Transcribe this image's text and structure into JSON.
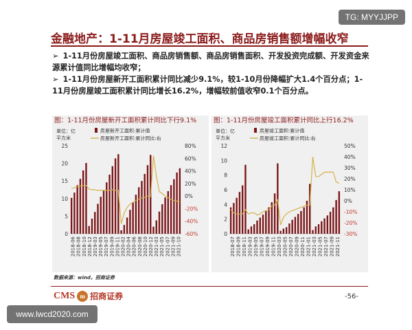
{
  "watermark_top": "TG: MYYJJPP",
  "watermark_bottom": "www.lwcd2020.com",
  "slide": {
    "title": "金融地产：1-11月房屋竣工面积、商品房销售额增幅收窄",
    "bullet_marker": "➢",
    "bullets": [
      "1-11月份房屋竣工面积、商品房销售额、商品房销售面积、开发投资完成额、开发资金来源累计值同比增幅均收窄；",
      "1-11月份房屋新开工面积累计同比减少9.1%，较1-10月份降幅扩大1.4个百分点；1-11月份房屋竣工面积累计同比增长16.2%，增幅较前值收窄0.1个百分点。"
    ],
    "source_note": "数据来源：wind，招商证券",
    "logo_text": "CMS",
    "logo_cn": "招商证券",
    "page_number": "-56-"
  },
  "colors": {
    "bar": "#7a1518",
    "line": "#d4b24a",
    "title": "#8b1a1a",
    "red_tick": "#c0392b"
  },
  "chart_data": [
    {
      "type": "bar",
      "title": "图：1-11月份房屋新开工面积累计同比下行9.1%",
      "unit_label": [
        "单位：亿",
        "平方米"
      ],
      "legend": [
        {
          "name": "房屋新开工面积:累计值",
          "kind": "bar"
        },
        {
          "name": "房屋新开工面积:累计同比:右",
          "kind": "line"
        }
      ],
      "x_labels": [
        "2018-06",
        "2018-08",
        "2018-10",
        "2018-12",
        "2019-03",
        "2019-05",
        "2019-07",
        "2019-09",
        "2019-11",
        "2020-02",
        "2020-04",
        "2020-06",
        "2020-08",
        "2020-10",
        "2020-12",
        "2021-03",
        "2021-05",
        "2021-07",
        "2021-09",
        "2021-10"
      ],
      "y_left": {
        "min": 0,
        "max": 25,
        "ticks": [
          0,
          5,
          10,
          15,
          20,
          25
        ]
      },
      "y_right": {
        "min": -60,
        "max": 80,
        "ticks": [
          "-60%",
          "-40%",
          "-20%",
          "0%",
          "20%",
          "40%",
          "60%",
          "80%"
        ]
      },
      "series": [
        {
          "name": "房屋新开工面积:累计值",
          "axis": "left",
          "values": [
            10.2,
            11.7,
            13.8,
            15.6,
            18.0,
            20.1,
            2.2,
            4.3,
            6.2,
            8.5,
            10.5,
            12.4,
            14.6,
            16.8,
            19.2,
            21.4,
            22.6,
            1.0,
            2.5,
            4.6,
            6.8,
            8.9,
            11.1,
            13.2,
            15.0,
            17.0,
            19.5,
            22.4,
            2.0,
            3.8,
            6.3,
            8.4,
            10.3,
            12.1,
            13.8,
            15.5,
            17.4,
            18.6
          ]
        },
        {
          "name": "房屋新开工面积:累计同比:右",
          "axis": "right",
          "values": [
            12,
            13,
            15,
            16,
            17,
            17,
            11,
            10,
            10,
            9,
            9,
            9,
            9,
            9,
            10,
            9,
            9,
            -44,
            -27,
            -18,
            -13,
            -10,
            -7,
            -5,
            -3,
            -2,
            0,
            -1,
            64,
            31,
            7,
            4,
            0,
            -3,
            -5,
            -7,
            -8,
            -9
          ]
        }
      ]
    },
    {
      "type": "bar",
      "title": "图：1-11月份房屋竣工面积累计同比上行16.2%",
      "unit_label": [
        "单位：亿",
        "平方米"
      ],
      "legend": [
        {
          "name": "房屋竣工面积:累计值",
          "kind": "bar"
        },
        {
          "name": "房屋竣工面积:累计同比:右",
          "kind": "line"
        }
      ],
      "x_labels": [
        "2018-07",
        "2018-09",
        "2018-11",
        "2019-03",
        "2019-05",
        "2019-07",
        "2019-09",
        "2019-11",
        "2020-03",
        "2020-05",
        "2020-07",
        "2020-09",
        "2020-11",
        "2021-01",
        "2021-03",
        "2021-05",
        "2021-07",
        "2021-09",
        "2021-11"
      ],
      "y_left": {
        "min": 0,
        "max": 12,
        "ticks": [
          0,
          2,
          4,
          6,
          8,
          10,
          12
        ]
      },
      "y_right": {
        "min": -30,
        "max": 50,
        "ticks": [
          "-30%",
          "-20%",
          "-10%",
          "0%",
          "10%",
          "20%",
          "30%",
          "40%",
          "50%"
        ]
      },
      "series": [
        {
          "name": "房屋竣工面积:累计值",
          "axis": "left",
          "values": [
            3.6,
            4.2,
            4.9,
            5.7,
            6.6,
            9.4,
            0.6,
            1.0,
            1.3,
            1.8,
            2.2,
            2.6,
            3.1,
            3.6,
            4.3,
            5.5,
            9.6,
            0.4,
            0.7,
            0.9,
            1.4,
            1.9,
            2.3,
            2.7,
            3.1,
            3.6,
            4.5,
            6.8,
            0.5,
            1.0,
            1.3,
            1.7,
            2.1,
            2.5,
            3.0,
            3.6,
            4.6,
            5.8
          ]
        },
        {
          "name": "房屋竣工面积:累计同比:右",
          "axis": "right",
          "values": [
            -8,
            -11,
            -12,
            -12,
            -12,
            -8,
            -12,
            -11,
            -11,
            -13,
            -12,
            -10,
            -9,
            -8,
            -5,
            -4,
            1,
            -22,
            -15,
            -12,
            -10,
            -9,
            -8,
            -7,
            -6,
            -5,
            -4,
            -4,
            40,
            22,
            22,
            24,
            26,
            26,
            26,
            26,
            17,
            16
          ]
        }
      ]
    }
  ]
}
